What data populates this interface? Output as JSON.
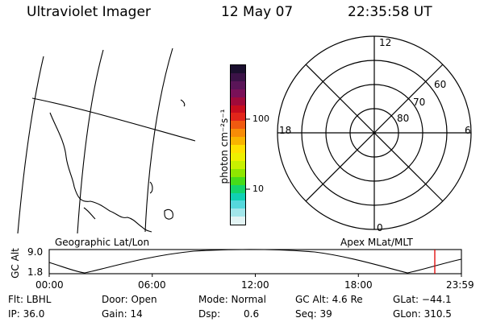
{
  "header": {
    "instrument": "Ultraviolet Imager",
    "date": "12 May 07",
    "time": "22:35:58 UT"
  },
  "colorbar": {
    "unit_label": "photon cm⁻²s⁻¹",
    "ticks": [
      "100",
      "10"
    ],
    "colors": [
      "#1a0f2e",
      "#3b1247",
      "#5a1558",
      "#7a1058",
      "#a00a3a",
      "#c80d1e",
      "#e2251a",
      "#f05a10",
      "#f78c07",
      "#f9b400",
      "#ffe000",
      "#eeef00",
      "#c8f000",
      "#8ee600",
      "#46dc1a",
      "#14d46c",
      "#10d0b4",
      "#55d8dc",
      "#a2e6ea",
      "#e3f4f4"
    ]
  },
  "polar_plot": {
    "mlt_labels": {
      "top": "12",
      "left": "18",
      "right": "6",
      "bottom": "0"
    },
    "lat_labels": [
      "60",
      "70",
      "80"
    ]
  },
  "timeline": {
    "ylabel": "GC Alt",
    "y_ticks": [
      "9.0",
      "1.8"
    ],
    "left_title": "Geographic Lat/Lon",
    "right_title": "Apex MLat/MLT",
    "x_ticks": [
      "00:00",
      "06:00",
      "12:00",
      "18:00",
      "23:59"
    ]
  },
  "info": {
    "flt": "Flt: LBHL",
    "ip": "IP: 36.0",
    "door": "Door: Open",
    "gain": "Gain: 14",
    "mode": "Mode: Normal",
    "dsp_label": "Dsp:",
    "dsp_value": "0.6",
    "gc_alt": "GC Alt: 4.6 Re",
    "seq": "Seq: 39",
    "glat": "GLat: −44.1",
    "glon": "GLon: 310.5"
  },
  "colors": {
    "marker": "#e00000",
    "ink": "#000000",
    "background": "#ffffff"
  }
}
